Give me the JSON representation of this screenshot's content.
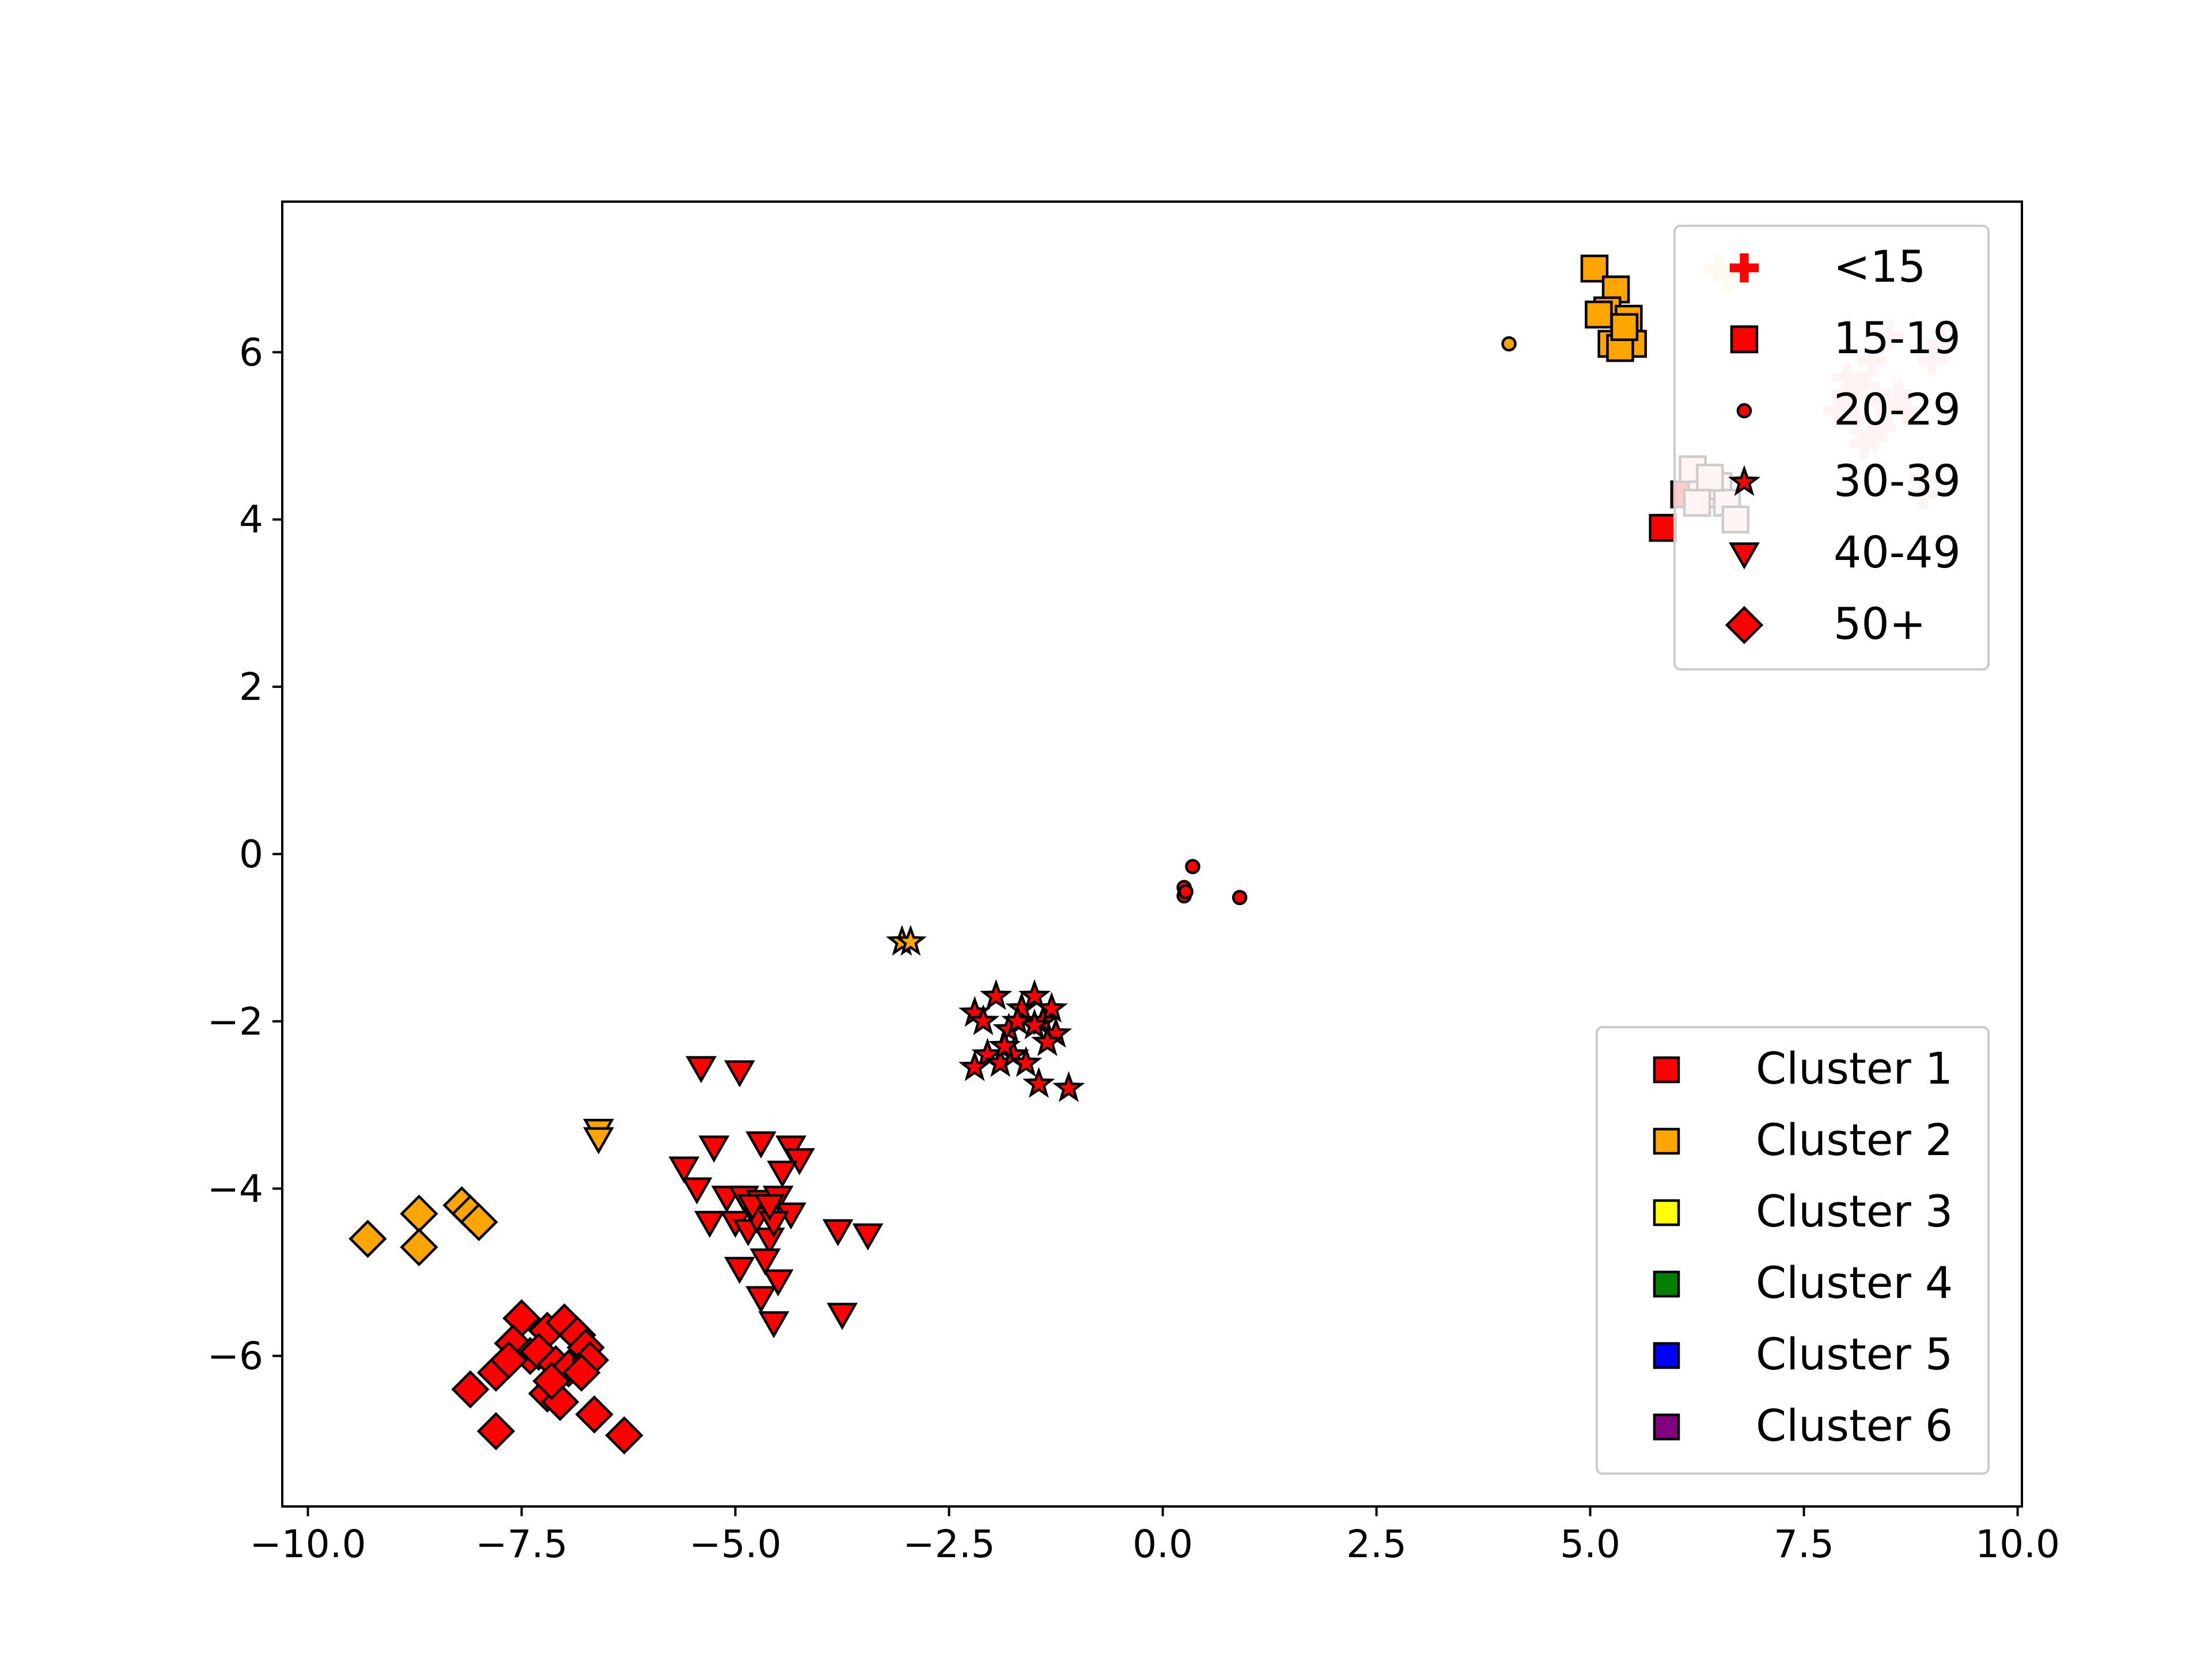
{
  "chart_data": {
    "type": "scatter",
    "title": "",
    "xlabel": "",
    "ylabel": "",
    "xlim": [
      -10.3,
      10.05
    ],
    "ylim": [
      -7.8,
      7.8
    ],
    "x_ticks": [
      -10.0,
      -7.5,
      -5.0,
      -2.5,
      0.0,
      2.5,
      5.0,
      7.5,
      10.0
    ],
    "x_tick_labels": [
      "−10.0",
      "−7.5",
      "−5.0",
      "−2.5",
      "0.0",
      "2.5",
      "5.0",
      "7.5",
      "10.0"
    ],
    "y_ticks": [
      -6,
      -4,
      -2,
      0,
      2,
      4,
      6
    ],
    "y_tick_labels": [
      "−6",
      "−4",
      "−2",
      "0",
      "2",
      "4",
      "6"
    ],
    "grid": false,
    "marker_legend": {
      "placement": "upper right",
      "entries": [
        {
          "label": "<15",
          "marker": "plus"
        },
        {
          "label": "15-19",
          "marker": "square"
        },
        {
          "label": "20-29",
          "marker": "circle"
        },
        {
          "label": "30-39",
          "marker": "star"
        },
        {
          "label": "40-49",
          "marker": "triangle-down"
        },
        {
          "label": "50+",
          "marker": "diamond"
        }
      ]
    },
    "cluster_legend": {
      "placement": "lower right",
      "entries": [
        {
          "label": "Cluster 1",
          "color": "#ff0000"
        },
        {
          "label": "Cluster 2",
          "color": "#ffa500"
        },
        {
          "label": "Cluster 3",
          "color": "#ffff00"
        },
        {
          "label": "Cluster 4",
          "color": "#008000"
        },
        {
          "label": "Cluster 5",
          "color": "#0000ff"
        },
        {
          "label": "Cluster 6",
          "color": "#800080"
        }
      ]
    },
    "series": [
      {
        "group": "<15",
        "marker": "plus",
        "color": "#ffc0c0",
        "points": [
          [
            7.9,
            5.3
          ],
          [
            8.0,
            5.5
          ],
          [
            8.1,
            5.2
          ],
          [
            8.2,
            5.6
          ],
          [
            8.3,
            5.0
          ],
          [
            8.4,
            5.4
          ],
          [
            8.5,
            5.3
          ],
          [
            8.3,
            5.9
          ],
          [
            8.2,
            4.9
          ],
          [
            8.6,
            5.5
          ],
          [
            8.0,
            5.7
          ],
          [
            8.4,
            5.1
          ],
          [
            8.7,
            5.3
          ],
          [
            8.9,
            4.5
          ],
          [
            9.0,
            5.9
          ],
          [
            9.1,
            6.1
          ],
          [
            8.9,
            4.3
          ],
          [
            8.5,
            6.2
          ]
        ]
      },
      {
        "group": "<15",
        "marker": "plus",
        "color": "#ffe4b5",
        "points": [
          [
            6.5,
            7.0
          ],
          [
            6.6,
            6.9
          ]
        ]
      },
      {
        "group": "15-19",
        "marker": "square",
        "color": "#ffa500",
        "points": [
          [
            5.05,
            7.0
          ],
          [
            5.3,
            6.75
          ],
          [
            5.2,
            6.5
          ],
          [
            5.45,
            6.4
          ],
          [
            5.1,
            6.45
          ],
          [
            5.4,
            6.2
          ],
          [
            5.25,
            6.1
          ],
          [
            5.5,
            6.1
          ],
          [
            5.35,
            6.05
          ],
          [
            5.4,
            6.3
          ]
        ]
      },
      {
        "group": "15-19",
        "marker": "square",
        "color": "#ff0000",
        "points": [
          [
            5.85,
            3.9
          ],
          [
            6.1,
            4.3
          ]
        ]
      },
      {
        "group": "15-19",
        "marker": "square",
        "color": "#ffcccc",
        "points": [
          [
            6.2,
            4.6
          ],
          [
            6.3,
            4.3
          ],
          [
            6.5,
            4.4
          ],
          [
            6.6,
            4.2
          ],
          [
            6.7,
            4.0
          ],
          [
            6.4,
            4.5
          ],
          [
            6.25,
            4.2
          ]
        ]
      },
      {
        "group": "20-29",
        "marker": "circle",
        "color": "#ffa500",
        "points": [
          [
            4.05,
            6.1
          ]
        ]
      },
      {
        "group": "20-29",
        "marker": "circle",
        "color": "#ff0000",
        "points": [
          [
            0.35,
            -0.15
          ],
          [
            0.25,
            -0.4
          ],
          [
            0.25,
            -0.5
          ],
          [
            0.27,
            -0.45
          ],
          [
            0.9,
            -0.52
          ]
        ]
      },
      {
        "group": "30-39",
        "marker": "star",
        "color": "#ffa500",
        "points": [
          [
            -3.05,
            -1.05
          ],
          [
            -2.95,
            -1.05
          ]
        ]
      },
      {
        "group": "30-39",
        "marker": "star",
        "color": "#ff0000",
        "points": [
          [
            -2.2,
            -1.9
          ],
          [
            -2.1,
            -2.0
          ],
          [
            -1.95,
            -1.7
          ],
          [
            -1.8,
            -2.1
          ],
          [
            -1.65,
            -1.85
          ],
          [
            -1.5,
            -1.7
          ],
          [
            -1.4,
            -2.0
          ],
          [
            -1.3,
            -1.85
          ],
          [
            -1.25,
            -2.15
          ],
          [
            -2.05,
            -2.4
          ],
          [
            -1.9,
            -2.5
          ],
          [
            -1.75,
            -2.4
          ],
          [
            -1.6,
            -2.5
          ],
          [
            -1.45,
            -2.75
          ],
          [
            -1.1,
            -2.8
          ],
          [
            -2.2,
            -2.55
          ],
          [
            -1.5,
            -2.05
          ],
          [
            -1.85,
            -2.3
          ],
          [
            -1.7,
            -2.0
          ],
          [
            -1.35,
            -2.25
          ]
        ]
      },
      {
        "group": "40-49",
        "marker": "triangle-down",
        "color": "#ffa500",
        "points": [
          [
            -6.6,
            -3.3
          ],
          [
            -6.6,
            -3.4
          ]
        ]
      },
      {
        "group": "40-49",
        "marker": "triangle-down",
        "color": "#ff0000",
        "points": [
          [
            -5.4,
            -2.55
          ],
          [
            -4.95,
            -2.6
          ],
          [
            -5.6,
            -3.75
          ],
          [
            -5.25,
            -3.5
          ],
          [
            -4.7,
            -3.45
          ],
          [
            -4.35,
            -3.5
          ],
          [
            -4.25,
            -3.65
          ],
          [
            -4.45,
            -3.8
          ],
          [
            -5.45,
            -4.0
          ],
          [
            -5.1,
            -4.1
          ],
          [
            -4.9,
            -4.1
          ],
          [
            -4.7,
            -4.15
          ],
          [
            -4.5,
            -4.1
          ],
          [
            -4.35,
            -4.3
          ],
          [
            -5.3,
            -4.4
          ],
          [
            -5.0,
            -4.4
          ],
          [
            -4.85,
            -4.5
          ],
          [
            -4.6,
            -4.6
          ],
          [
            -4.75,
            -4.35
          ],
          [
            -4.55,
            -4.4
          ],
          [
            -4.95,
            -4.95
          ],
          [
            -4.65,
            -4.85
          ],
          [
            -4.5,
            -5.1
          ],
          [
            -4.7,
            -5.3
          ],
          [
            -4.55,
            -5.6
          ],
          [
            -3.8,
            -4.5
          ],
          [
            -3.45,
            -4.55
          ],
          [
            -3.75,
            -5.5
          ],
          [
            -4.8,
            -4.2
          ],
          [
            -4.6,
            -4.2
          ]
        ]
      },
      {
        "group": "50+",
        "marker": "diamond",
        "color": "#ffa500",
        "points": [
          [
            -9.3,
            -4.6
          ],
          [
            -8.7,
            -4.3
          ],
          [
            -8.7,
            -4.7
          ],
          [
            -8.2,
            -4.2
          ],
          [
            -8.1,
            -4.3
          ],
          [
            -8.0,
            -4.4
          ]
        ]
      },
      {
        "group": "50+",
        "marker": "diamond",
        "color": "#ff0000",
        "points": [
          [
            -7.5,
            -5.55
          ],
          [
            -7.6,
            -5.85
          ],
          [
            -7.4,
            -6.0
          ],
          [
            -7.2,
            -5.7
          ],
          [
            -7.0,
            -5.6
          ],
          [
            -6.85,
            -5.75
          ],
          [
            -6.75,
            -5.9
          ],
          [
            -7.3,
            -5.95
          ],
          [
            -7.1,
            -6.1
          ],
          [
            -6.95,
            -6.15
          ],
          [
            -6.7,
            -6.05
          ],
          [
            -6.8,
            -6.2
          ],
          [
            -7.8,
            -6.2
          ],
          [
            -7.65,
            -6.05
          ],
          [
            -8.1,
            -6.4
          ],
          [
            -7.2,
            -6.45
          ],
          [
            -7.05,
            -6.55
          ],
          [
            -7.15,
            -6.3
          ],
          [
            -6.65,
            -6.7
          ],
          [
            -6.3,
            -6.95
          ],
          [
            -7.8,
            -6.9
          ]
        ]
      }
    ]
  }
}
